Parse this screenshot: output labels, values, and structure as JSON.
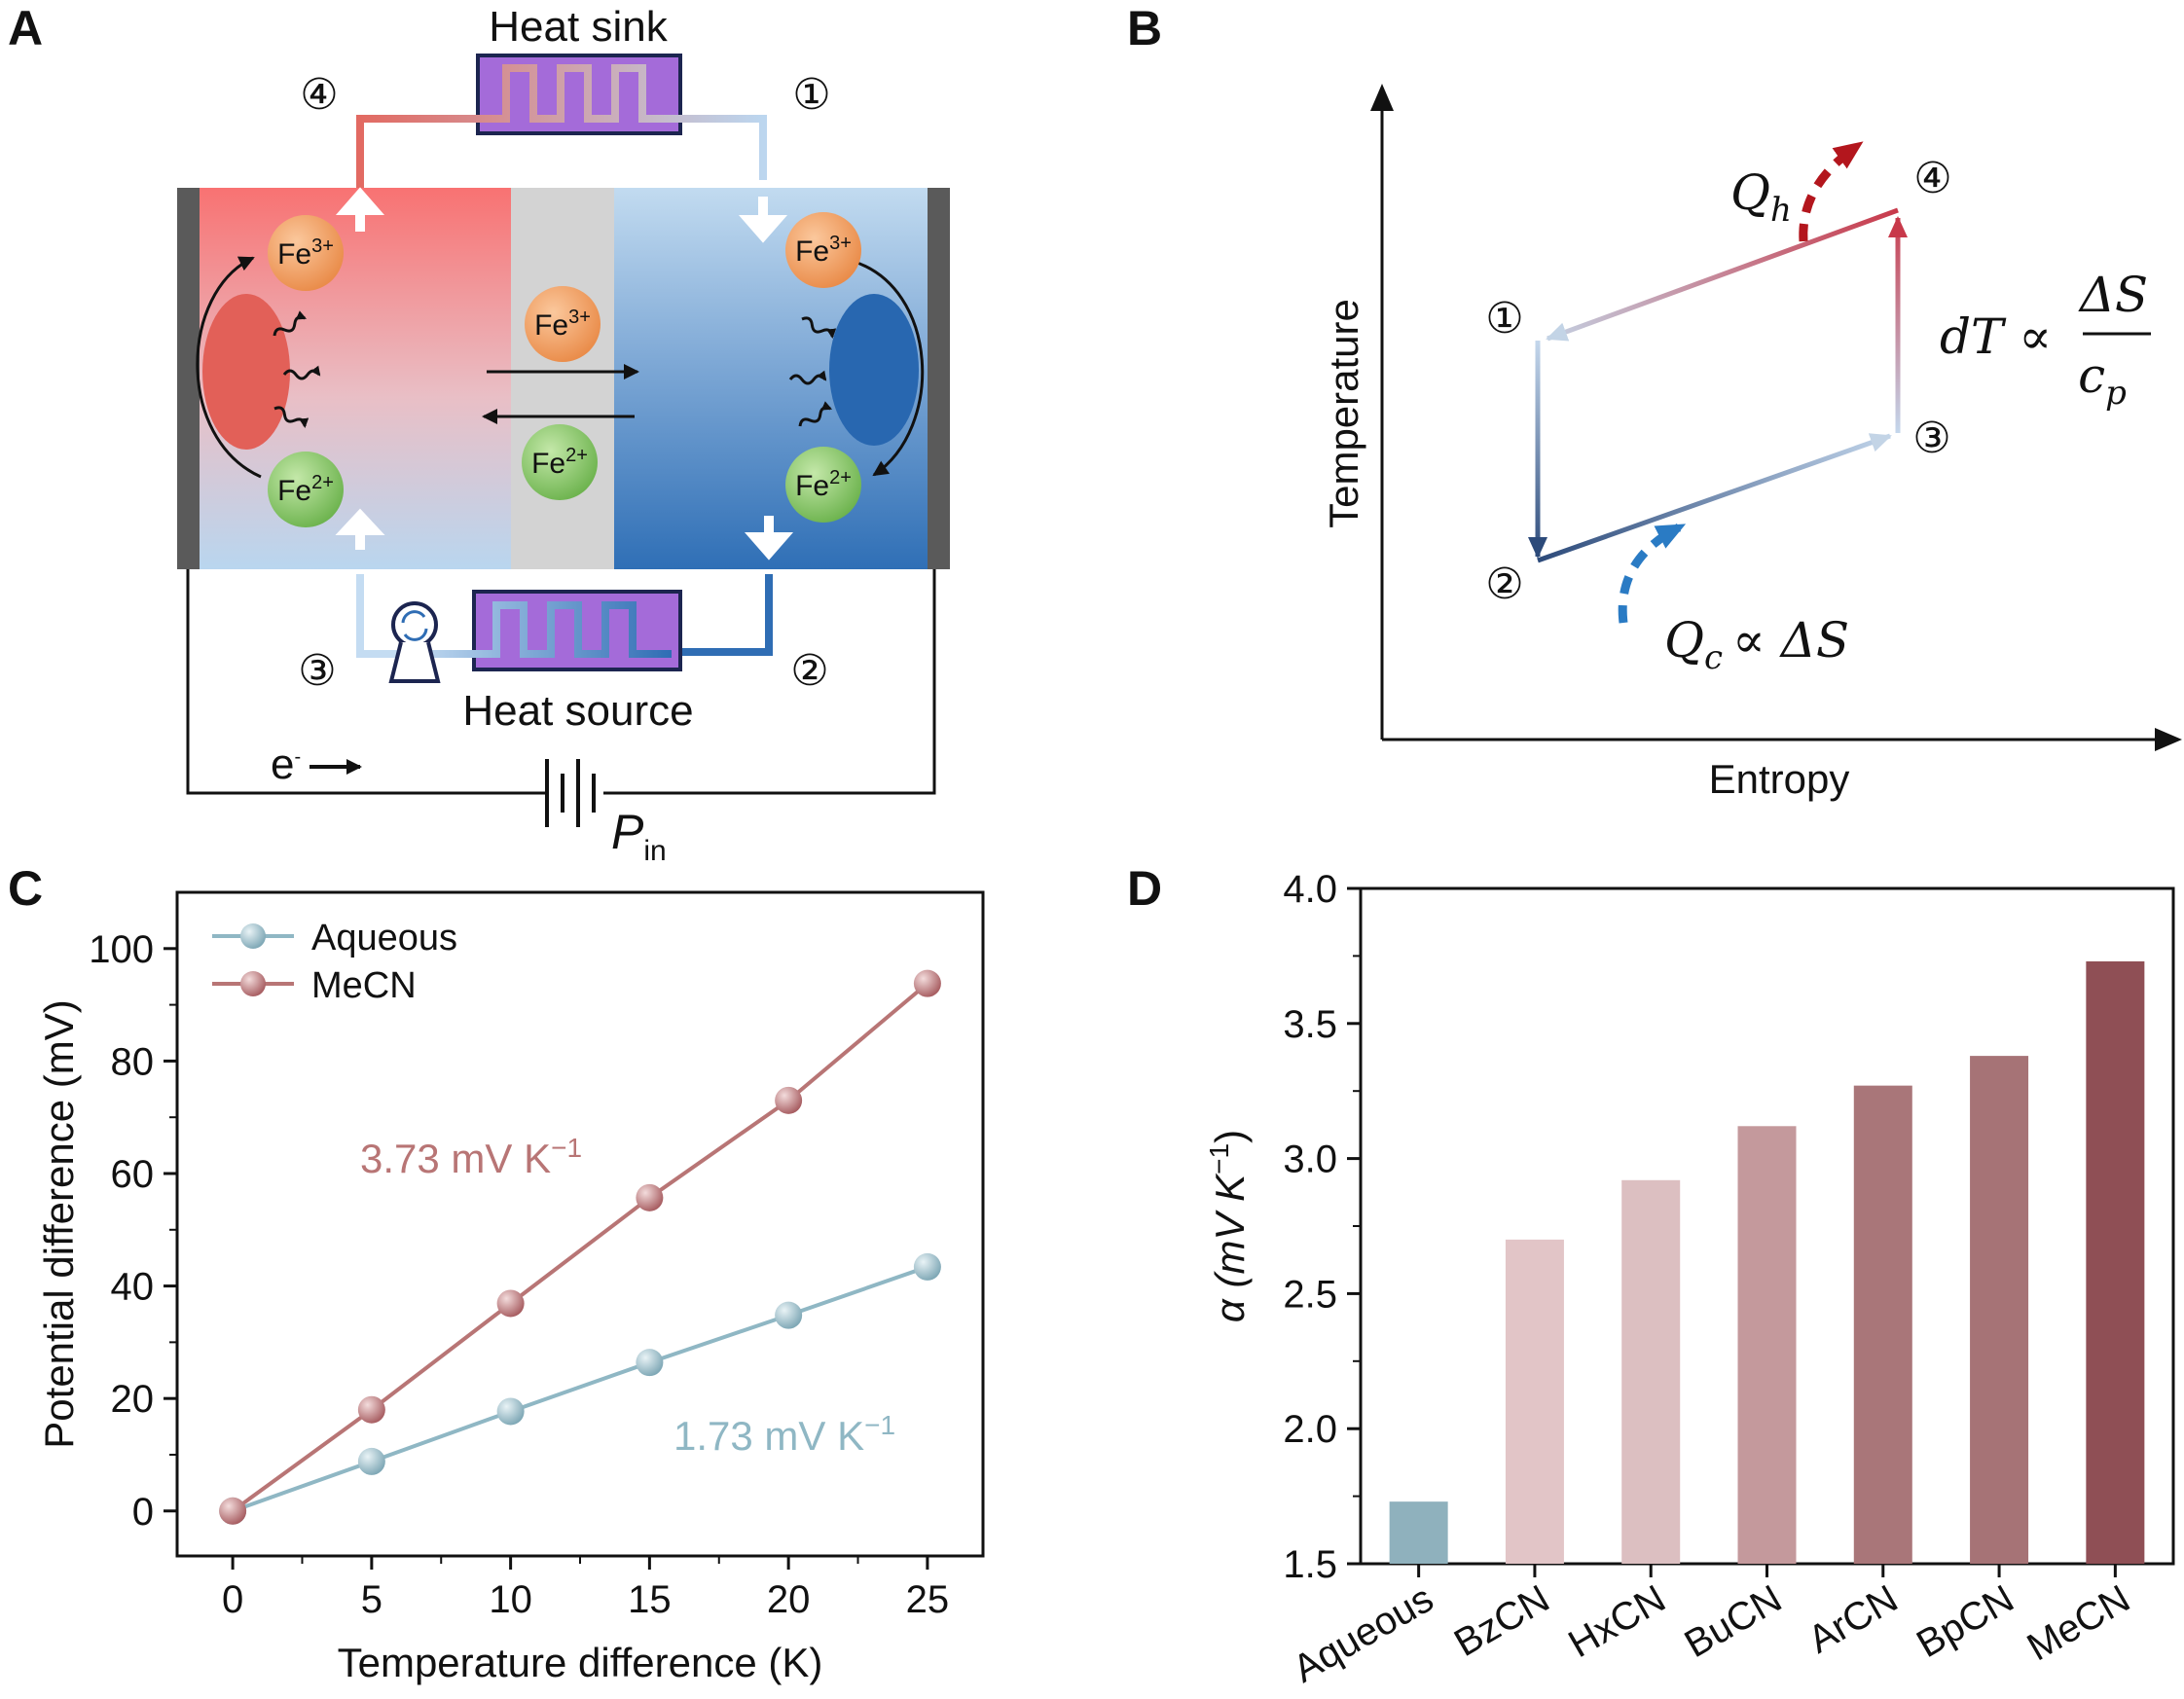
{
  "panels": {
    "A": {
      "letter": "A",
      "heat_sink": "Heat sink",
      "heat_source": "Heat source",
      "steps": {
        "s1": "①",
        "s2": "②",
        "s3": "③",
        "s4": "④"
      },
      "ions": {
        "fe3": "Fe",
        "fe3_charge": "3+",
        "fe2": "Fe",
        "fe2_charge": "2+"
      },
      "electron": "e",
      "electron_charge": "-",
      "power_label": "P",
      "power_sub": "in",
      "colors": {
        "hot": "#f47a78",
        "cold": "#2b6cb0",
        "membrane": "#d4d4d4",
        "sink": "#a06ad6"
      }
    },
    "B": {
      "letter": "B",
      "x_label": "Entropy",
      "y_label": "Temperature",
      "steps": {
        "s1": "①",
        "s2": "②",
        "s3": "③",
        "s4": "④"
      },
      "qh": "Q",
      "qh_sub": "h",
      "qc": "Q",
      "qc_sub": "c",
      "qc_rel": "∝ ΔS",
      "dt": "dT ∝",
      "dt_num": "ΔS",
      "dt_den": "c",
      "dt_den_sub": "p"
    },
    "C": {
      "letter": "C"
    },
    "D": {
      "letter": "D"
    }
  },
  "chart_data": [
    {
      "panel": "C",
      "type": "line",
      "xlabel": "Temperature difference (K)",
      "ylabel": "Potential difference (mV)",
      "xlim": [
        -2,
        27
      ],
      "ylim": [
        -8,
        110
      ],
      "xticks": [
        0,
        5,
        10,
        15,
        20,
        25
      ],
      "yticks": [
        0,
        20,
        40,
        60,
        80,
        100
      ],
      "legend_position": "top-left",
      "series": [
        {
          "name": "Aqueous",
          "color": "#8fb7c4",
          "x": [
            0,
            5,
            10,
            15,
            20,
            25
          ],
          "y": [
            0,
            8.8,
            17.7,
            26.4,
            34.8,
            43.4
          ]
        },
        {
          "name": "MeCN",
          "color": "#b87575",
          "x": [
            0,
            5,
            10,
            15,
            20,
            25
          ],
          "y": [
            0,
            18,
            36.9,
            55.7,
            73,
            93.8
          ]
        }
      ],
      "annotations": [
        {
          "text": "3.73 mV K",
          "sup": "−1",
          "color": "#b87575"
        },
        {
          "text": "1.73 mV K",
          "sup": "−1",
          "color": "#8fb7c4"
        }
      ]
    },
    {
      "panel": "D",
      "type": "bar",
      "ylabel": "α (mV K",
      "ylabel_sup": "−1",
      "ylabel_end": ")",
      "ylim": [
        1.5,
        4.0
      ],
      "yticks": [
        "1.5",
        "2.0",
        "2.5",
        "3.0",
        "3.5",
        "4.0"
      ],
      "categories": [
        "Aqueous",
        "BzCN",
        "HxCN",
        "BuCN",
        "ArCN",
        "BpCN",
        "MeCN"
      ],
      "values": [
        1.73,
        2.7,
        2.92,
        3.12,
        3.27,
        3.38,
        3.73
      ],
      "colors": [
        "#8fb1bd",
        "#e2c5c7",
        "#dcbfc1",
        "#c4999c",
        "#a97679",
        "#a67376",
        "#8f4f55"
      ]
    }
  ]
}
